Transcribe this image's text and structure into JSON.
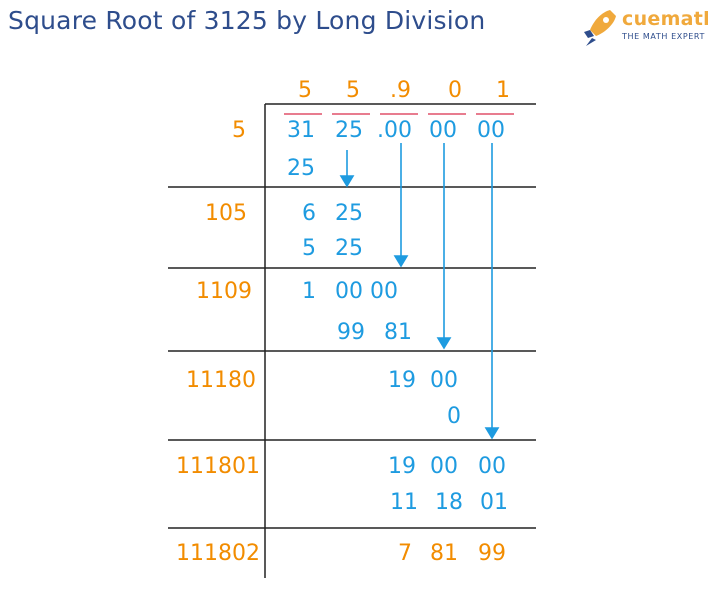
{
  "title": "Square Root of 3125 by Long Division",
  "logo": {
    "name": "cuemath",
    "tagline": "THE MATH EXPERT",
    "icon": "rocket-icon",
    "brand_color": "#f0a93c",
    "brand_blue": "#2e4d8c"
  },
  "colors": {
    "divisor": "#f28c00",
    "quotient": "#f28c00",
    "work": "#1e9be0",
    "rule": "#e0506a",
    "grid": "#222222"
  },
  "quotient": [
    "5",
    "5",
    ".9",
    "0",
    "1"
  ],
  "dividend": [
    "31",
    "25",
    ".00",
    "00",
    "00"
  ],
  "divisors": [
    "5",
    "105",
    "1109",
    "11180",
    "111801",
    "111802"
  ],
  "work": {
    "r1": "25",
    "r2a": "6",
    "r2b": "25",
    "r3a": "5",
    "r3b": "25",
    "r4a": "1",
    "r4b": "00 00",
    "r5a": "99",
    "r5b": "81",
    "r6a": "19",
    "r6b": "00",
    "r7": "0",
    "r8a": "19",
    "r8b": "00",
    "r8c": "00",
    "r9a": "11",
    "r9b": "18",
    "r9c": "01",
    "r10a": "7",
    "r10b": "81",
    "r10c": "99"
  }
}
